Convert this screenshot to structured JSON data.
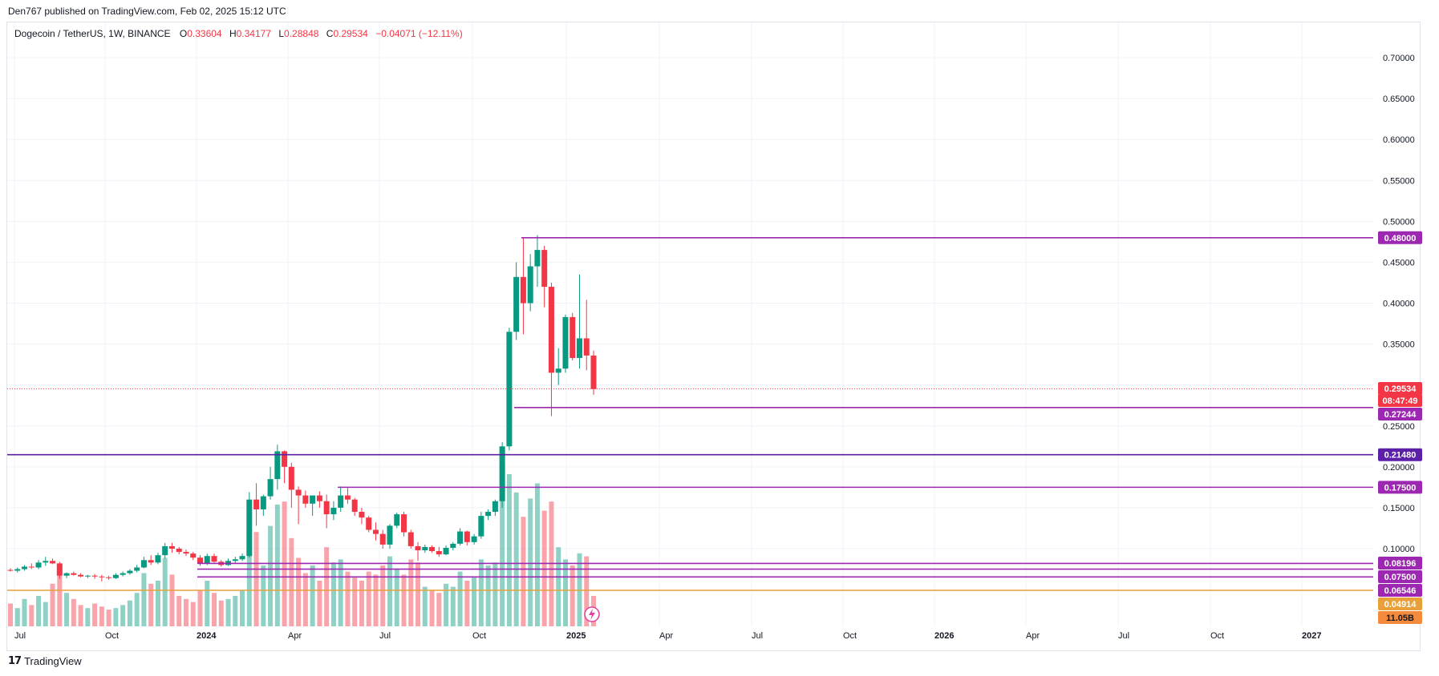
{
  "header": {
    "published": "Den767 published on TradingView.com, Feb 02, 2025 15:12 UTC"
  },
  "legend": {
    "symbol": "Dogecoin / TetherUS, 1W, BINANCE",
    "open_label": "O",
    "open": "0.33604",
    "high_label": "H",
    "high": "0.34177",
    "low_label": "L",
    "low": "0.28848",
    "close_label": "C",
    "close": "0.29534",
    "change": "−0.04071 (−12.11%)"
  },
  "footer": {
    "logo_mark": "𝟭𝟳",
    "brand": "TradingView"
  },
  "colors": {
    "up": "#089981",
    "down": "#f23645",
    "level": "#9c27b0",
    "level_blue": "#5b1fa8",
    "orange": "#e8a13a"
  },
  "chart_data": {
    "type": "candlestick",
    "title": "Dogecoin / TetherUS, 1W, BINANCE",
    "ylim": [
      0.0,
      0.73
    ],
    "y_ticks": [
      "0.70000",
      "0.65000",
      "0.60000",
      "0.55000",
      "0.50000",
      "0.45000",
      "0.40000",
      "0.35000",
      "0.30000",
      "0.25000",
      "0.20000",
      "0.15000",
      "0.10000"
    ],
    "x_ticks": [
      {
        "label": "Jul",
        "bold": false
      },
      {
        "label": "Oct",
        "bold": false
      },
      {
        "label": "2024",
        "bold": true
      },
      {
        "label": "Apr",
        "bold": false
      },
      {
        "label": "Jul",
        "bold": false
      },
      {
        "label": "Oct",
        "bold": false
      },
      {
        "label": "2025",
        "bold": true
      },
      {
        "label": "Apr",
        "bold": false
      },
      {
        "label": "Jul",
        "bold": false
      },
      {
        "label": "Oct",
        "bold": false
      },
      {
        "label": "2026",
        "bold": true
      },
      {
        "label": "Apr",
        "bold": false
      },
      {
        "label": "Jul",
        "bold": false
      },
      {
        "label": "Oct",
        "bold": false
      },
      {
        "label": "2027",
        "bold": true
      }
    ],
    "candles": [
      [
        0.074,
        0.076,
        0.072,
        0.073
      ],
      [
        0.073,
        0.077,
        0.071,
        0.075
      ],
      [
        0.075,
        0.08,
        0.073,
        0.078
      ],
      [
        0.078,
        0.082,
        0.075,
        0.077
      ],
      [
        0.077,
        0.086,
        0.075,
        0.083
      ],
      [
        0.083,
        0.09,
        0.079,
        0.085
      ],
      [
        0.085,
        0.088,
        0.081,
        0.082
      ],
      [
        0.082,
        0.084,
        0.063,
        0.067
      ],
      [
        0.067,
        0.071,
        0.064,
        0.07
      ],
      [
        0.07,
        0.072,
        0.067,
        0.068
      ],
      [
        0.068,
        0.07,
        0.065,
        0.066
      ],
      [
        0.066,
        0.068,
        0.064,
        0.067
      ],
      [
        0.067,
        0.069,
        0.063,
        0.066
      ],
      [
        0.066,
        0.068,
        0.06,
        0.065
      ],
      [
        0.065,
        0.067,
        0.062,
        0.064
      ],
      [
        0.064,
        0.07,
        0.063,
        0.068
      ],
      [
        0.068,
        0.072,
        0.066,
        0.07
      ],
      [
        0.07,
        0.075,
        0.068,
        0.073
      ],
      [
        0.073,
        0.08,
        0.071,
        0.077
      ],
      [
        0.077,
        0.09,
        0.076,
        0.086
      ],
      [
        0.086,
        0.092,
        0.08,
        0.083
      ],
      [
        0.083,
        0.095,
        0.081,
        0.092
      ],
      [
        0.092,
        0.107,
        0.088,
        0.103
      ],
      [
        0.103,
        0.107,
        0.095,
        0.1
      ],
      [
        0.1,
        0.102,
        0.093,
        0.096
      ],
      [
        0.096,
        0.099,
        0.091,
        0.094
      ],
      [
        0.094,
        0.096,
        0.086,
        0.089
      ],
      [
        0.089,
        0.092,
        0.079,
        0.082
      ],
      [
        0.082,
        0.094,
        0.08,
        0.091
      ],
      [
        0.091,
        0.094,
        0.083,
        0.084
      ],
      [
        0.084,
        0.086,
        0.078,
        0.08
      ],
      [
        0.08,
        0.088,
        0.079,
        0.085
      ],
      [
        0.085,
        0.09,
        0.082,
        0.087
      ],
      [
        0.087,
        0.094,
        0.085,
        0.091
      ],
      [
        0.091,
        0.169,
        0.089,
        0.16
      ],
      [
        0.16,
        0.18,
        0.128,
        0.148
      ],
      [
        0.148,
        0.166,
        0.14,
        0.164
      ],
      [
        0.164,
        0.2,
        0.16,
        0.185
      ],
      [
        0.185,
        0.227,
        0.172,
        0.219
      ],
      [
        0.219,
        0.22,
        0.18,
        0.2
      ],
      [
        0.2,
        0.205,
        0.15,
        0.172
      ],
      [
        0.172,
        0.176,
        0.13,
        0.165
      ],
      [
        0.165,
        0.171,
        0.15,
        0.155
      ],
      [
        0.155,
        0.162,
        0.14,
        0.165
      ],
      [
        0.165,
        0.17,
        0.15,
        0.158
      ],
      [
        0.158,
        0.166,
        0.125,
        0.142
      ],
      [
        0.142,
        0.158,
        0.135,
        0.15
      ],
      [
        0.15,
        0.176,
        0.145,
        0.165
      ],
      [
        0.165,
        0.175,
        0.155,
        0.16
      ],
      [
        0.16,
        0.162,
        0.14,
        0.145
      ],
      [
        0.145,
        0.15,
        0.13,
        0.138
      ],
      [
        0.138,
        0.14,
        0.12,
        0.123
      ],
      [
        0.123,
        0.132,
        0.11,
        0.118
      ],
      [
        0.118,
        0.123,
        0.1,
        0.105
      ],
      [
        0.105,
        0.13,
        0.1,
        0.128
      ],
      [
        0.128,
        0.144,
        0.125,
        0.142
      ],
      [
        0.142,
        0.145,
        0.115,
        0.12
      ],
      [
        0.12,
        0.123,
        0.1,
        0.103
      ],
      [
        0.103,
        0.108,
        0.085,
        0.098
      ],
      [
        0.098,
        0.105,
        0.095,
        0.102
      ],
      [
        0.102,
        0.104,
        0.095,
        0.097
      ],
      [
        0.097,
        0.102,
        0.09,
        0.093
      ],
      [
        0.093,
        0.104,
        0.092,
        0.101
      ],
      [
        0.101,
        0.108,
        0.098,
        0.106
      ],
      [
        0.106,
        0.125,
        0.104,
        0.121
      ],
      [
        0.121,
        0.122,
        0.104,
        0.108
      ],
      [
        0.108,
        0.118,
        0.105,
        0.115
      ],
      [
        0.115,
        0.145,
        0.112,
        0.14
      ],
      [
        0.14,
        0.148,
        0.135,
        0.145
      ],
      [
        0.145,
        0.16,
        0.14,
        0.158
      ],
      [
        0.158,
        0.23,
        0.15,
        0.225
      ],
      [
        0.225,
        0.37,
        0.22,
        0.365
      ],
      [
        0.365,
        0.45,
        0.355,
        0.432
      ],
      [
        0.432,
        0.48,
        0.362,
        0.4
      ],
      [
        0.4,
        0.46,
        0.39,
        0.445
      ],
      [
        0.445,
        0.483,
        0.42,
        0.465
      ],
      [
        0.465,
        0.47,
        0.395,
        0.42
      ],
      [
        0.42,
        0.425,
        0.262,
        0.315
      ],
      [
        0.315,
        0.345,
        0.3,
        0.32
      ],
      [
        0.32,
        0.386,
        0.315,
        0.383
      ],
      [
        0.383,
        0.388,
        0.33,
        0.333
      ],
      [
        0.333,
        0.435,
        0.32,
        0.357
      ],
      [
        0.357,
        0.404,
        0.318,
        0.336
      ],
      [
        0.336,
        0.342,
        0.288,
        0.295
      ]
    ],
    "volume_pct": [
      0.15,
      0.12,
      0.18,
      0.14,
      0.2,
      0.16,
      0.28,
      0.4,
      0.22,
      0.18,
      0.14,
      0.12,
      0.15,
      0.13,
      0.11,
      0.12,
      0.14,
      0.17,
      0.22,
      0.35,
      0.28,
      0.3,
      0.45,
      0.34,
      0.2,
      0.18,
      0.16,
      0.24,
      0.3,
      0.22,
      0.17,
      0.18,
      0.2,
      0.24,
      0.78,
      0.62,
      0.4,
      0.66,
      0.8,
      0.82,
      0.58,
      0.45,
      0.35,
      0.4,
      0.3,
      0.52,
      0.42,
      0.44,
      0.36,
      0.32,
      0.3,
      0.36,
      0.34,
      0.4,
      0.46,
      0.38,
      0.34,
      0.44,
      0.42,
      0.26,
      0.24,
      0.22,
      0.28,
      0.26,
      0.36,
      0.3,
      0.32,
      0.44,
      0.4,
      0.42,
      0.98,
      1.0,
      0.88,
      0.72,
      0.84,
      0.94,
      0.76,
      0.82,
      0.52,
      0.44,
      0.4,
      0.48,
      0.46,
      0.2
    ],
    "levels": [
      {
        "value": 0.48,
        "label": "0.48000",
        "color": "#9c27b0"
      },
      {
        "value": 0.27244,
        "label": "0.27244",
        "color": "#9c27b0"
      },
      {
        "value": 0.2148,
        "label": "0.21480",
        "color": "#5b1fa8"
      },
      {
        "value": 0.175,
        "label": "0.17500",
        "color": "#9c27b0"
      },
      {
        "value": 0.08196,
        "label": "0.08196",
        "color": "#9c27b0"
      },
      {
        "value": 0.075,
        "label": "0.07500",
        "color": "#9c27b0"
      },
      {
        "value": 0.06546,
        "label": "0.06546",
        "color": "#9c27b0"
      },
      {
        "value": 0.04914,
        "label": "0.04914",
        "color": "#e8a13a"
      }
    ],
    "current_price": {
      "label": "0.29534",
      "countdown": "08:47:49"
    },
    "volume_label": "11.05B"
  }
}
